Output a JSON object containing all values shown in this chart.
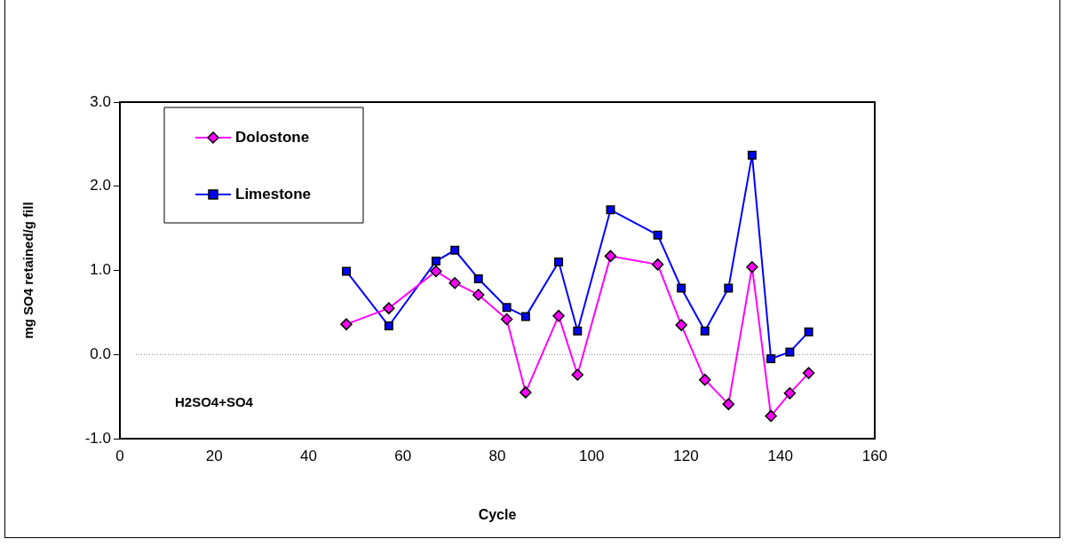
{
  "chart_data": {
    "type": "line",
    "xlabel": "Cycle",
    "ylabel": "mg SO4 retained/g fill",
    "annotations": [
      "H2SO4+SO4"
    ],
    "series": [
      {
        "name": "Dolostone",
        "color": "#ff00ff",
        "marker": "diamond",
        "x": [
          48,
          57,
          67,
          71,
          76,
          82,
          86,
          93,
          97,
          104,
          114,
          119,
          124,
          129,
          134,
          138,
          142,
          146
        ],
        "values": [
          0.36,
          0.55,
          0.99,
          0.85,
          0.71,
          0.42,
          -0.45,
          0.46,
          -0.24,
          1.17,
          1.07,
          0.35,
          -0.3,
          -0.59,
          1.04,
          -0.73,
          -0.46,
          -0.22
        ]
      },
      {
        "name": "Limestone",
        "color": "#0000ff",
        "marker": "square",
        "x": [
          48,
          57,
          67,
          71,
          76,
          82,
          86,
          93,
          97,
          104,
          114,
          119,
          124,
          129,
          134,
          138,
          142,
          146
        ],
        "values": [
          0.99,
          0.34,
          1.11,
          1.24,
          0.9,
          0.56,
          0.45,
          1.1,
          0.28,
          1.72,
          1.42,
          0.79,
          0.28,
          0.79,
          2.37,
          -0.05,
          0.03,
          0.27
        ]
      }
    ],
    "xlim": [
      0,
      160
    ],
    "xticks": [
      0,
      20,
      40,
      60,
      80,
      100,
      120,
      140,
      160
    ],
    "ylim": [
      -1,
      3
    ],
    "yticks": [
      {
        "value": -1,
        "label": "-1.0"
      },
      {
        "value": 0,
        "label": "0.0"
      },
      {
        "value": 1,
        "label": "1.0"
      },
      {
        "value": 2,
        "label": "2.0"
      },
      {
        "value": 3,
        "label": "3.0"
      }
    ],
    "ref_lines": [
      {
        "axis": "y",
        "value": 0,
        "color": "#808080",
        "line_style": "dotted"
      }
    ],
    "grid": false,
    "legend": "top left",
    "line_style": "solid"
  }
}
